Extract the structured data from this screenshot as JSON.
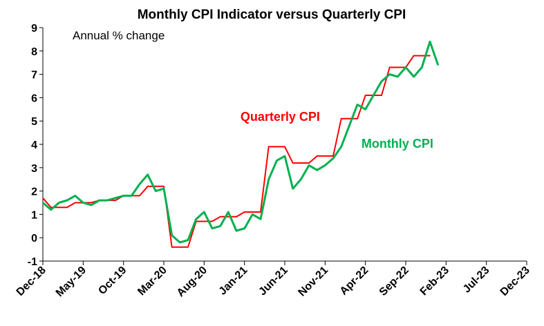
{
  "chart_data": {
    "type": "line",
    "title": "Monthly CPI Indicator versus Quarterly CPI",
    "annotation": "Annual % change",
    "xlabel": "",
    "ylabel": "",
    "ylim": [
      -1,
      9
    ],
    "yticks": [
      -1,
      0,
      1,
      2,
      3,
      4,
      5,
      6,
      7,
      8,
      9
    ],
    "xlim": [
      0,
      60
    ],
    "x_ticks": [
      {
        "label": "Dec-18",
        "m": 0
      },
      {
        "label": "May-19",
        "m": 5
      },
      {
        "label": "Oct-19",
        "m": 10
      },
      {
        "label": "Mar-20",
        "m": 15
      },
      {
        "label": "Aug-20",
        "m": 20
      },
      {
        "label": "Jan-21",
        "m": 25
      },
      {
        "label": "Jun-21",
        "m": 30
      },
      {
        "label": "Nov-21",
        "m": 35
      },
      {
        "label": "Apr-22",
        "m": 40
      },
      {
        "label": "Sep-22",
        "m": 45
      },
      {
        "label": "Feb-23",
        "m": 50
      },
      {
        "label": "Jul-23",
        "m": 55
      },
      {
        "label": "Dec-23",
        "m": 60
      }
    ],
    "series": [
      {
        "name": "Quarterly CPI",
        "color": "#ff0000",
        "label_position": "above-middle",
        "points": [
          [
            0,
            1.7
          ],
          [
            1,
            1.3
          ],
          [
            2,
            1.3
          ],
          [
            3,
            1.3
          ],
          [
            4,
            1.5
          ],
          [
            5,
            1.5
          ],
          [
            6,
            1.5
          ],
          [
            7,
            1.6
          ],
          [
            8,
            1.6
          ],
          [
            9,
            1.6
          ],
          [
            10,
            1.8
          ],
          [
            11,
            1.8
          ],
          [
            12,
            1.8
          ],
          [
            13,
            2.2
          ],
          [
            14,
            2.2
          ],
          [
            15,
            2.2
          ],
          [
            16,
            -0.4
          ],
          [
            17,
            -0.4
          ],
          [
            18,
            -0.4
          ],
          [
            19,
            0.7
          ],
          [
            20,
            0.7
          ],
          [
            21,
            0.7
          ],
          [
            22,
            0.9
          ],
          [
            23,
            0.9
          ],
          [
            24,
            0.9
          ],
          [
            25,
            1.1
          ],
          [
            26,
            1.1
          ],
          [
            27,
            1.1
          ],
          [
            28,
            3.9
          ],
          [
            29,
            3.9
          ],
          [
            30,
            3.9
          ],
          [
            31,
            3.2
          ],
          [
            32,
            3.2
          ],
          [
            33,
            3.2
          ],
          [
            34,
            3.5
          ],
          [
            35,
            3.5
          ],
          [
            36,
            3.5
          ],
          [
            37,
            5.1
          ],
          [
            38,
            5.1
          ],
          [
            39,
            5.1
          ],
          [
            40,
            6.1
          ],
          [
            41,
            6.1
          ],
          [
            42,
            6.1
          ],
          [
            43,
            7.3
          ],
          [
            44,
            7.3
          ],
          [
            45,
            7.3
          ],
          [
            46,
            7.8
          ],
          [
            47,
            7.8
          ],
          [
            48,
            7.8
          ]
        ]
      },
      {
        "name": "Monthly CPI",
        "color": "#00b050",
        "label_position": "right-middle",
        "points": [
          [
            0,
            1.5
          ],
          [
            1,
            1.2
          ],
          [
            2,
            1.5
          ],
          [
            3,
            1.6
          ],
          [
            4,
            1.8
          ],
          [
            5,
            1.5
          ],
          [
            6,
            1.4
          ],
          [
            7,
            1.6
          ],
          [
            8,
            1.6
          ],
          [
            9,
            1.7
          ],
          [
            10,
            1.8
          ],
          [
            11,
            1.8
          ],
          [
            12,
            2.3
          ],
          [
            13,
            2.7
          ],
          [
            14,
            2.0
          ],
          [
            15,
            2.1
          ],
          [
            16,
            0.1
          ],
          [
            17,
            -0.2
          ],
          [
            18,
            -0.1
          ],
          [
            19,
            0.8
          ],
          [
            20,
            1.1
          ],
          [
            21,
            0.4
          ],
          [
            22,
            0.5
          ],
          [
            23,
            1.1
          ],
          [
            24,
            0.3
          ],
          [
            25,
            0.4
          ],
          [
            26,
            1.0
          ],
          [
            27,
            0.8
          ],
          [
            28,
            2.5
          ],
          [
            29,
            3.3
          ],
          [
            30,
            3.5
          ],
          [
            31,
            2.1
          ],
          [
            32,
            2.5
          ],
          [
            33,
            3.1
          ],
          [
            34,
            2.9
          ],
          [
            35,
            3.1
          ],
          [
            36,
            3.4
          ],
          [
            37,
            3.9
          ],
          [
            38,
            4.8
          ],
          [
            39,
            5.7
          ],
          [
            40,
            5.5
          ],
          [
            41,
            6.1
          ],
          [
            42,
            6.7
          ],
          [
            43,
            7.0
          ],
          [
            44,
            6.9
          ],
          [
            45,
            7.3
          ],
          [
            46,
            6.9
          ],
          [
            47,
            7.3
          ],
          [
            48,
            8.4
          ],
          [
            49,
            7.4
          ]
        ]
      }
    ]
  }
}
